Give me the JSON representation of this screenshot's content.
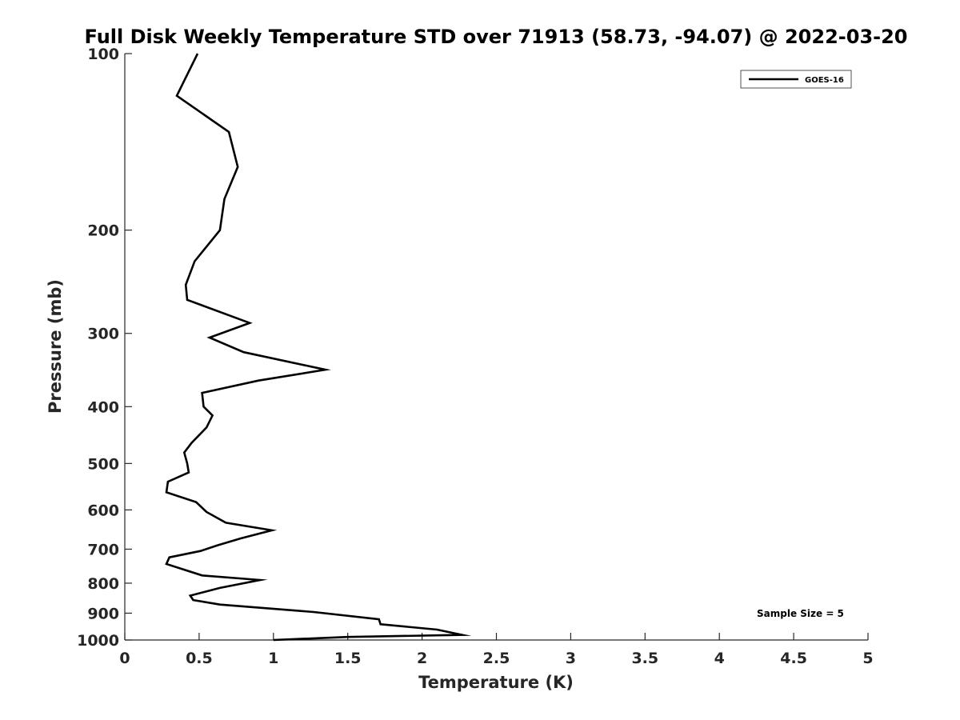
{
  "chart_data": {
    "type": "line",
    "title": "Full Disk Weekly Temperature STD over 71913 (58.73, -94.07) @ 2022-03-20",
    "xlabel": "Temperature (K)",
    "ylabel": "Pressure (mb)",
    "xlim": [
      0,
      5
    ],
    "ylim": [
      1000,
      100
    ],
    "y_scale": "log",
    "x_ticks": [
      "0",
      "0.5",
      "1",
      "1.5",
      "2",
      "2.5",
      "3",
      "3.5",
      "4",
      "4.5",
      "5"
    ],
    "x_tick_values": [
      0,
      0.5,
      1,
      1.5,
      2,
      2.5,
      3,
      3.5,
      4,
      4.5,
      5
    ],
    "y_ticks": [
      "100",
      "200",
      "300",
      "400",
      "500",
      "600",
      "700",
      "800",
      "900",
      "1000"
    ],
    "y_tick_values": [
      100,
      200,
      300,
      400,
      500,
      600,
      700,
      800,
      900,
      1000
    ],
    "grid": false,
    "legend_position": "top-right",
    "annotation": "Sample Size = 5",
    "series": [
      {
        "name": "GOES-16",
        "color": "#000000",
        "points": [
          [
            0.49,
            100
          ],
          [
            0.35,
            118
          ],
          [
            0.7,
            136
          ],
          [
            0.76,
            156
          ],
          [
            0.67,
            177
          ],
          [
            0.64,
            200
          ],
          [
            0.47,
            226
          ],
          [
            0.41,
            248
          ],
          [
            0.42,
            263
          ],
          [
            0.84,
            288
          ],
          [
            0.57,
            305
          ],
          [
            0.8,
            323
          ],
          [
            1.35,
            346
          ],
          [
            0.9,
            361
          ],
          [
            0.52,
            379
          ],
          [
            0.53,
            400
          ],
          [
            0.59,
            414
          ],
          [
            0.55,
            434
          ],
          [
            0.45,
            461
          ],
          [
            0.4,
            479
          ],
          [
            0.42,
            500
          ],
          [
            0.43,
            518
          ],
          [
            0.29,
            537
          ],
          [
            0.28,
            560
          ],
          [
            0.48,
            582
          ],
          [
            0.55,
            605
          ],
          [
            0.68,
            631
          ],
          [
            0.99,
            650
          ],
          [
            0.78,
            671
          ],
          [
            0.62,
            690
          ],
          [
            0.51,
            705
          ],
          [
            0.3,
            723
          ],
          [
            0.28,
            742
          ],
          [
            0.52,
            776
          ],
          [
            0.91,
            790
          ],
          [
            0.64,
            815
          ],
          [
            0.44,
            840
          ],
          [
            0.46,
            855
          ],
          [
            0.64,
            870
          ],
          [
            1.27,
            896
          ],
          [
            1.71,
            922
          ],
          [
            1.72,
            940
          ],
          [
            2.1,
            960
          ],
          [
            2.27,
            980
          ],
          [
            1.5,
            988
          ],
          [
            1.0,
            1000
          ]
        ]
      }
    ]
  }
}
